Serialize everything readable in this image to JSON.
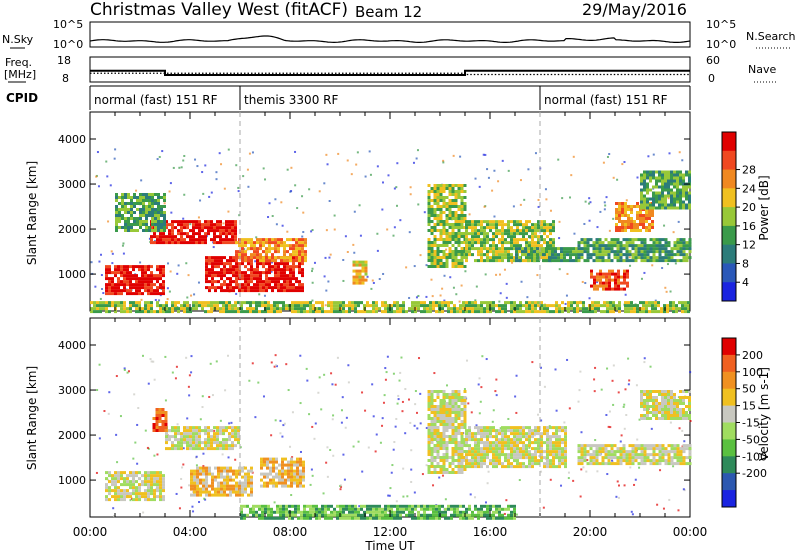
{
  "header": {
    "station": "Christmas Valley West (fitACF)",
    "beam": "Beam 12",
    "date": "29/May/2016"
  },
  "chart_data": [
    {
      "type": "line",
      "name": "sky-noise-strip",
      "left_label": "N.Sky",
      "right_label": "N.Search",
      "left_ticks": [
        "10^5",
        "10^0"
      ],
      "right_ticks": [
        "10^5",
        "10^0"
      ]
    },
    {
      "type": "line",
      "name": "frequency-nave-strip",
      "left_label_line1": "Freq.",
      "left_label_line2": "[MHz]",
      "right_label": "Nave",
      "left_ticks": [
        18,
        8
      ],
      "right_ticks": [
        60,
        0
      ],
      "freq_steps": [
        {
          "t_start": 0,
          "t_end": 3,
          "value": 12.5
        },
        {
          "t_start": 3,
          "t_end": 15,
          "value": 10.8
        },
        {
          "t_start": 15,
          "t_end": 24,
          "value": 12.5
        }
      ],
      "nave_steps": [
        {
          "t_start": 0,
          "t_end": 3,
          "value": 21
        },
        {
          "t_start": 3,
          "t_end": 15,
          "value": 21
        },
        {
          "t_start": 15,
          "t_end": 24,
          "value": 18
        }
      ]
    },
    {
      "type": "table",
      "name": "cpid-strip",
      "label": "CPID",
      "segments": [
        {
          "t_start": 0,
          "t_end": 6,
          "text": "normal (fast) 151 RF"
        },
        {
          "t_start": 6,
          "t_end": 18,
          "text": "themis 3300 RF"
        },
        {
          "t_start": 18,
          "t_end": 24,
          "text": "normal (fast) 151 RF"
        }
      ]
    },
    {
      "type": "heatmap",
      "name": "power-panel",
      "ylabel": "Slant Range [km]",
      "xlabel": "Time UT",
      "ylim": [
        180,
        4600
      ],
      "xlim": [
        0,
        24
      ],
      "yticks": [
        1000,
        2000,
        3000,
        4000
      ],
      "xticks": [
        "00:00",
        "04:00",
        "08:00",
        "12:00",
        "16:00",
        "20:00",
        "00:00"
      ],
      "colorbar_label": "Power [dB]",
      "colorbar_ticks": [
        4,
        8,
        12,
        16,
        20,
        24,
        28
      ],
      "colorbar_colors": [
        "#1a24e0",
        "#2a58b8",
        "#2c7c7a",
        "#3a9a4a",
        "#98c838",
        "#f0c020",
        "#f08820",
        "#f04820",
        "#e00000"
      ],
      "regions": [
        {
          "t_start": 0.6,
          "t_end": 3.0,
          "r_start": 600,
          "r_end": 1200,
          "level": 8
        },
        {
          "t_start": 2.4,
          "t_end": 5.8,
          "r_start": 1700,
          "r_end": 2200,
          "level": 8
        },
        {
          "t_start": 4.6,
          "t_end": 8.5,
          "r_start": 650,
          "r_end": 1400,
          "level": 8
        },
        {
          "t_start": 5.8,
          "t_end": 8.6,
          "r_start": 1300,
          "r_end": 1800,
          "level": 6
        },
        {
          "t_start": 1.0,
          "t_end": 3.0,
          "r_start": 2000,
          "r_end": 2800,
          "level": 3
        },
        {
          "t_start": 10.5,
          "t_end": 11.0,
          "r_start": 800,
          "r_end": 1300,
          "level": 5
        },
        {
          "t_start": 13.5,
          "t_end": 15.0,
          "r_start": 1200,
          "r_end": 3000,
          "level": 4
        },
        {
          "t_start": 15.0,
          "t_end": 18.5,
          "r_start": 1300,
          "r_end": 2200,
          "level": 4
        },
        {
          "t_start": 17.0,
          "t_end": 19.5,
          "r_start": 1300,
          "r_end": 1600,
          "level": 3
        },
        {
          "t_start": 19.5,
          "t_end": 24.0,
          "r_start": 1300,
          "r_end": 1800,
          "level": 3
        },
        {
          "t_start": 20.0,
          "t_end": 21.5,
          "r_start": 700,
          "r_end": 1100,
          "level": 7
        },
        {
          "t_start": 21.0,
          "t_end": 22.5,
          "r_start": 2000,
          "r_end": 2600,
          "level": 6
        },
        {
          "t_start": 22.0,
          "t_end": 24.0,
          "r_start": 2500,
          "r_end": 3300,
          "level": 3
        },
        {
          "t_start": 0.0,
          "t_end": 24.0,
          "r_start": 180,
          "r_end": 400,
          "level": 4
        }
      ]
    },
    {
      "type": "heatmap",
      "name": "velocity-panel",
      "ylabel": "Slant Range [km]",
      "xlabel": "Time UT",
      "ylim": [
        180,
        4600
      ],
      "xlim": [
        0,
        24
      ],
      "yticks": [
        1000,
        2000,
        3000,
        4000
      ],
      "xticks": [
        "00:00",
        "04:00",
        "08:00",
        "12:00",
        "16:00",
        "20:00",
        "00:00"
      ],
      "colorbar_label": "Velocity [m s-1]",
      "colorbar_ticks": [
        200,
        100,
        50,
        15,
        -15,
        -50,
        -100,
        -200
      ],
      "colorbar_colors": [
        "#1a24e0",
        "#2c58b0",
        "#2e8a5a",
        "#5ac040",
        "#a0dc60",
        "#c8c8c0",
        "#f0c020",
        "#f09020",
        "#f06020",
        "#e00000"
      ],
      "regions": [
        {
          "t_start": 0.6,
          "t_end": 3.0,
          "r_start": 600,
          "r_end": 1200,
          "level": 5
        },
        {
          "t_start": 3.0,
          "t_end": 6.0,
          "r_start": 1700,
          "r_end": 2200,
          "level": 5
        },
        {
          "t_start": 4.0,
          "t_end": 6.5,
          "r_start": 700,
          "r_end": 1300,
          "level": 6
        },
        {
          "t_start": 6.8,
          "t_end": 8.6,
          "r_start": 900,
          "r_end": 1500,
          "level": 6
        },
        {
          "t_start": 2.5,
          "t_end": 3.0,
          "r_start": 2100,
          "r_end": 2600,
          "level": 8
        },
        {
          "t_start": 13.5,
          "t_end": 15.0,
          "r_start": 1200,
          "r_end": 3000,
          "level": 5
        },
        {
          "t_start": 15.0,
          "t_end": 19.0,
          "r_start": 1300,
          "r_end": 2200,
          "level": 5
        },
        {
          "t_start": 19.5,
          "t_end": 24.0,
          "r_start": 1400,
          "r_end": 1800,
          "level": 5
        },
        {
          "t_start": 22.0,
          "t_end": 24.0,
          "r_start": 2400,
          "r_end": 3000,
          "level": 5
        },
        {
          "t_start": 6.0,
          "t_end": 17.0,
          "r_start": 180,
          "r_end": 450,
          "level": 3
        }
      ]
    }
  ]
}
